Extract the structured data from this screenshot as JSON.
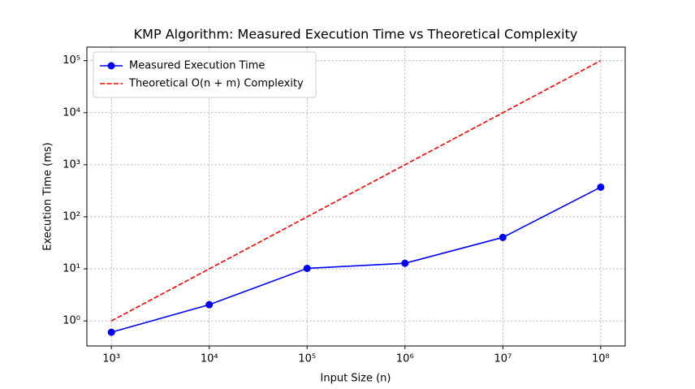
{
  "chart_data": {
    "type": "line",
    "title": "KMP Algorithm: Measured Execution Time vs Theoretical Complexity",
    "x_label": "Input Size (n)",
    "y_label": "Execution Time (ms)",
    "x": [
      1000,
      10000,
      100000,
      1000000,
      10000000,
      100000000
    ],
    "series": [
      {
        "name": "Measured Execution Time",
        "color": "#0000ff",
        "line_style": "solid",
        "marker": true,
        "values": [
          0.605,
          2.05,
          10.2,
          12.8,
          40.2,
          371
        ]
      },
      {
        "name": "Theoretical O(n + m) Complexity",
        "color": "#ff0000",
        "line_style": "dashed",
        "marker": false,
        "values": [
          1,
          10,
          100,
          1000,
          10000,
          100000
        ]
      }
    ],
    "x_log": true,
    "y_log": true,
    "xlim": [
      562,
      177800000
    ],
    "ylim": [
      0.33,
      182000
    ],
    "xticks": [
      {
        "value": 1000,
        "label": "10³"
      },
      {
        "value": 10000,
        "label": "10⁴"
      },
      {
        "value": 100000,
        "label": "10⁵"
      },
      {
        "value": 1000000,
        "label": "10⁶"
      },
      {
        "value": 10000000,
        "label": "10⁷"
      },
      {
        "value": 100000000,
        "label": "10⁸"
      }
    ],
    "yticks": [
      {
        "value": 1,
        "label": "10⁰"
      },
      {
        "value": 10,
        "label": "10¹"
      },
      {
        "value": 100,
        "label": "10²"
      },
      {
        "value": 1000,
        "label": "10³"
      },
      {
        "value": 10000,
        "label": "10⁴"
      },
      {
        "value": 100000,
        "label": "10⁵"
      }
    ],
    "grid": true,
    "legend": "upper left"
  }
}
